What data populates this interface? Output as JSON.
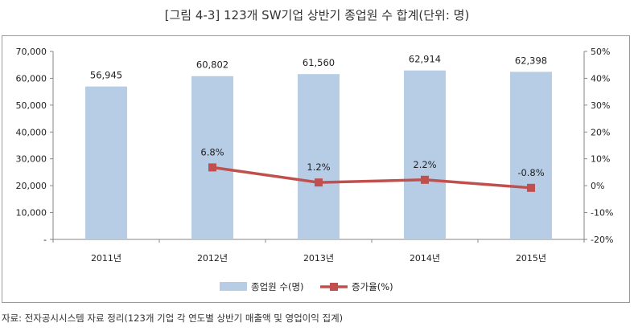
{
  "title": "[그림 4-3] 123개 SW기업 상반기 종업원 수 합계(단위: 명)",
  "source_note": "자료: 전자공시시스템 자료 정리(123개 기업 각 연도별 상반기 매출액 및 영업이익 집계)",
  "colors": {
    "bar": "#b7cde6",
    "line": "#c0504d",
    "axis": "#868686",
    "frame": "#9a9a9a"
  },
  "chart_data": {
    "type": "bar",
    "categories": [
      "2011년",
      "2012년",
      "2013년",
      "2014년",
      "2015년"
    ],
    "series": [
      {
        "name": "종업원 수(명)",
        "type": "bar",
        "axis": "left",
        "values": [
          56945,
          60802,
          61560,
          62914,
          62398
        ],
        "labels": [
          "56,945",
          "60,802",
          "61,560",
          "62,914",
          "62,398"
        ]
      },
      {
        "name": "증가율(%)",
        "type": "line",
        "axis": "right",
        "values": [
          null,
          6.8,
          1.2,
          2.2,
          -0.8
        ],
        "labels": [
          null,
          "6.8%",
          "1.2%",
          "2.2%",
          "-0.8%"
        ]
      }
    ],
    "left_axis": {
      "ylim": [
        0,
        70000
      ],
      "ticks": [
        0,
        10000,
        20000,
        30000,
        40000,
        50000,
        60000,
        70000
      ],
      "tick_labels": [
        "-",
        "10,000",
        "20,000",
        "30,000",
        "40,000",
        "50,000",
        "60,000",
        "70,000"
      ]
    },
    "right_axis": {
      "ylim": [
        -20,
        50
      ],
      "ticks": [
        -20,
        -10,
        0,
        10,
        20,
        30,
        40,
        50
      ],
      "tick_labels": [
        "-20%",
        "-10%",
        "0%",
        "10%",
        "20%",
        "30%",
        "40%",
        "50%"
      ]
    },
    "grid": false,
    "legend_position": "bottom"
  }
}
